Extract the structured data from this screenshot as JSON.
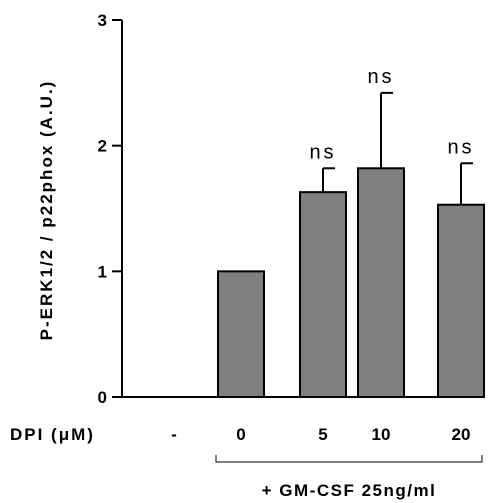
{
  "chart_data": {
    "type": "bar",
    "ylabel": "P-ERK1/2 / p22phox (A.U.)",
    "xlabel": "DPI (μM)",
    "footer": "+ GM-CSF 25ng/ml",
    "categories": [
      "-",
      "0",
      "5",
      "10",
      "20"
    ],
    "values": [
      0,
      1.0,
      1.63,
      1.82,
      1.53
    ],
    "errors": [
      0,
      0,
      0.19,
      0.6,
      0.33
    ],
    "annotations": [
      "",
      "",
      "ns",
      "ns",
      "ns"
    ],
    "ylim": [
      0,
      3
    ],
    "yticks": [
      0,
      1,
      2,
      3
    ],
    "bar_color": "#7f7f7f",
    "grid": false
  }
}
